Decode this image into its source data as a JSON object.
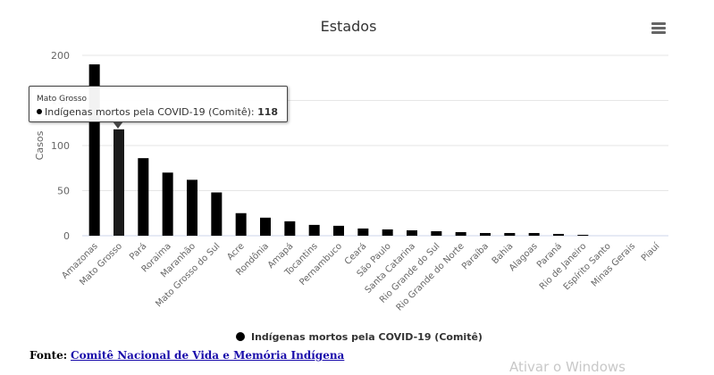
{
  "chart_data": {
    "type": "bar",
    "title": "Estados",
    "ylabel": "Casos",
    "xlabel": "",
    "ylim": [
      0,
      200
    ],
    "yticks": [
      0,
      50,
      100,
      150,
      200
    ],
    "grid": true,
    "legend": "bottom-center",
    "categories": [
      "Amazonas",
      "Mato Grosso",
      "Pará",
      "Roraima",
      "Maranhão",
      "Mato Grosso do Sul",
      "Acre",
      "Rondônia",
      "Amapá",
      "Tocantins",
      "Pernambuco",
      "Ceará",
      "São Paulo",
      "Santa Catarina",
      "Rio Grande do Sul",
      "Rio Grande do Norte",
      "Paraíba",
      "Bahia",
      "Alagoas",
      "Paraná",
      "Rio de Janeiro",
      "Espírito Santo",
      "Minas Gerais",
      "Piauí"
    ],
    "series": [
      {
        "name": "Indígenas mortos pela COVID-19 (Comitê)",
        "color": "#000000",
        "values": [
          190,
          118,
          86,
          70,
          62,
          48,
          25,
          20,
          16,
          12,
          11,
          8,
          7,
          6,
          5,
          4,
          3,
          3,
          3,
          2,
          1,
          0,
          0,
          0
        ]
      }
    ]
  },
  "tooltip": {
    "category": "Mato Grosso",
    "series_name": "Indígenas mortos pela COVID-19 (Comitê)",
    "value": "118"
  },
  "legend": {
    "label": "Indígenas mortos pela COVID-19 (Comitê)"
  },
  "menu": {
    "icon": "hamburger-icon"
  },
  "source": {
    "label": "Fonte:",
    "link_text": "Comitê Nacional de Vida e Memória Indígena"
  },
  "watermark": {
    "text": "Ativar o Windows"
  }
}
